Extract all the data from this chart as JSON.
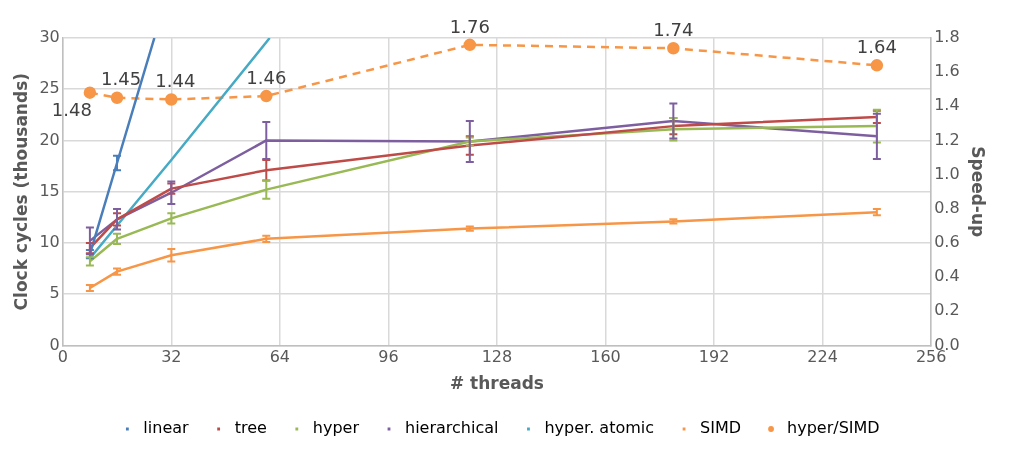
{
  "chart_data": {
    "type": "line",
    "xlabel": "# threads",
    "ylabel": "Clock cycles (thousands)",
    "y2label": "Speed-up",
    "x": [
      8,
      16,
      32,
      60,
      120,
      180,
      240
    ],
    "xlim": [
      0,
      256
    ],
    "xticks": [
      0,
      32,
      64,
      96,
      128,
      160,
      192,
      224,
      256
    ],
    "ylim": [
      0,
      30
    ],
    "yticks": [
      0,
      5,
      10,
      15,
      20,
      25,
      30
    ],
    "y2lim": [
      0,
      1.8
    ],
    "y2ticks": [
      {
        "value": 0,
        "label": "0.0"
      },
      0.2,
      0.4,
      0.6,
      0.8,
      {
        "value": 1,
        "label": "1.0"
      },
      1.2,
      1.4,
      1.6,
      1.8
    ],
    "grid": true,
    "legend": "bottom",
    "line_style": "solid",
    "series": [
      {
        "name": "linear",
        "color": "#4a7ebb",
        "x": [
          8,
          16,
          27
        ],
        "values": [
          8.9,
          17.8,
          30
        ],
        "errors": [
          0.4,
          0.7,
          null
        ]
      },
      {
        "name": "tree",
        "color": "#be4b48",
        "values": [
          9.5,
          12.3,
          15.3,
          17.1,
          19.5,
          21.4,
          22.3
        ],
        "errors": [
          0.5,
          0.6,
          0.5,
          1.0,
          0.9,
          0.8,
          0.6
        ]
      },
      {
        "name": "hyper",
        "color": "#98b954",
        "values": [
          8.2,
          10.4,
          12.4,
          15.2,
          19.9,
          21.1,
          21.4
        ],
        "errors": [
          0.4,
          0.5,
          0.5,
          0.9,
          0.4,
          1.1,
          1.6
        ]
      },
      {
        "name": "hierarchical",
        "color": "#7d5fa0",
        "values": [
          10.2,
          12.3,
          14.9,
          20.0,
          19.9,
          21.9,
          20.4
        ],
        "errors": [
          1.3,
          1.0,
          1.1,
          1.8,
          2.0,
          1.7,
          2.2
        ]
      },
      {
        "name": "hyper. atomic",
        "color": "#46aac5",
        "x": [
          8,
          16,
          32,
          61
        ],
        "values": [
          8.5,
          11.7,
          18.1,
          30
        ]
      },
      {
        "name": "SIMD",
        "color": "#f79646",
        "values": [
          5.6,
          7.2,
          8.8,
          10.4,
          11.4,
          12.1,
          13.0
        ],
        "errors": [
          0.3,
          0.3,
          0.6,
          0.3,
          0.2,
          0.2,
          0.3
        ]
      },
      {
        "name": "hyper/SIMD",
        "color": "#f79646",
        "axis": "y2",
        "marker": "circle",
        "line_style": "dashed",
        "data_labels": true,
        "values": [
          1.48,
          1.45,
          1.44,
          1.46,
          1.76,
          1.74,
          1.64
        ]
      }
    ]
  }
}
